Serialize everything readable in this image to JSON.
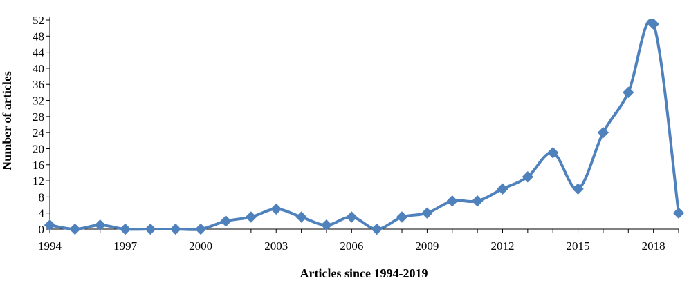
{
  "chart_data": {
    "type": "line",
    "title": "",
    "xlabel": "Articles since 1994-2019",
    "ylabel": "Number of articles",
    "xlim": [
      1994,
      2019
    ],
    "ylim": [
      0,
      52
    ],
    "x_ticks": [
      1994,
      1997,
      2000,
      2003,
      2006,
      2009,
      2012,
      2015,
      2018
    ],
    "y_ticks": [
      0,
      4,
      8,
      12,
      16,
      20,
      24,
      28,
      32,
      36,
      40,
      44,
      48,
      52
    ],
    "grid": false,
    "legend": "none",
    "series": [
      {
        "color": "#4f81bd",
        "marker": "diamond",
        "smooth": true,
        "x": [
          1994,
          1995,
          1996,
          1997,
          1998,
          1999,
          2000,
          2001,
          2002,
          2003,
          2004,
          2005,
          2006,
          2007,
          2008,
          2009,
          2010,
          2011,
          2012,
          2013,
          2014,
          2015,
          2016,
          2017,
          2018,
          2019
        ],
        "y": [
          1,
          0,
          1,
          0,
          0,
          0,
          0,
          2,
          3,
          5,
          3,
          1,
          3,
          0,
          3,
          4,
          7,
          7,
          10,
          13,
          19,
          10,
          24,
          34,
          51,
          4
        ]
      }
    ]
  }
}
